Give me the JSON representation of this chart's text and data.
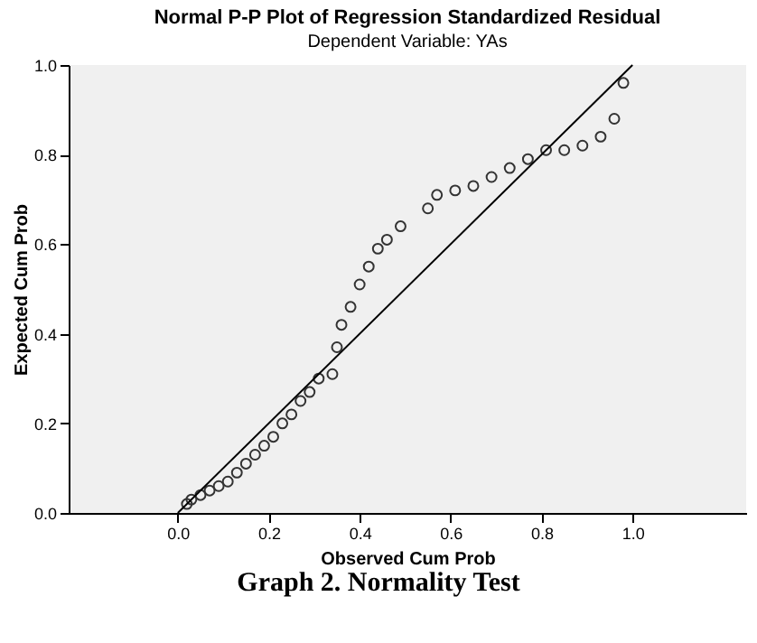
{
  "chart_data": {
    "type": "scatter",
    "title": "Normal P-P Plot of Regression Standardized Residual",
    "subtitle": "Dependent Variable: YAs",
    "xlabel": "Observed Cum Prob",
    "ylabel": "Expected Cum Prob",
    "annotations": [
      "Graph 2. Normality Test"
    ],
    "xlim": [
      -0.24,
      1.25
    ],
    "ylim": [
      0,
      1
    ],
    "xticks": [
      {
        "value": 0,
        "label": "0.0"
      },
      {
        "value": 0.2,
        "label": "0.2"
      },
      {
        "value": 0.4,
        "label": "0.4"
      },
      {
        "value": 0.6,
        "label": "0.6"
      },
      {
        "value": 0.8,
        "label": "0.8"
      },
      {
        "value": 1,
        "label": "1.0"
      }
    ],
    "yticks": [
      {
        "value": 0,
        "label": "0.0"
      },
      {
        "value": 0.2,
        "label": "0.2"
      },
      {
        "value": 0.4,
        "label": "0.4"
      },
      {
        "value": 0.6,
        "label": "0.6"
      },
      {
        "value": 0.8,
        "label": "0.8"
      },
      {
        "value": 1,
        "label": "1.0"
      }
    ],
    "grid": false,
    "series": [
      {
        "marker": "circle",
        "color": "#333333",
        "x": [
          0.02,
          0.03,
          0.05,
          0.07,
          0.09,
          0.11,
          0.13,
          0.15,
          0.17,
          0.19,
          0.21,
          0.23,
          0.25,
          0.27,
          0.29,
          0.31,
          0.34,
          0.35,
          0.36,
          0.38,
          0.4,
          0.42,
          0.44,
          0.46,
          0.49,
          0.55,
          0.57,
          0.61,
          0.65,
          0.69,
          0.73,
          0.77,
          0.81,
          0.85,
          0.89,
          0.93,
          0.96,
          0.98
        ],
        "values": [
          0.02,
          0.03,
          0.04,
          0.05,
          0.06,
          0.07,
          0.09,
          0.11,
          0.13,
          0.15,
          0.17,
          0.2,
          0.22,
          0.25,
          0.27,
          0.3,
          0.31,
          0.37,
          0.42,
          0.46,
          0.51,
          0.55,
          0.59,
          0.61,
          0.64,
          0.68,
          0.71,
          0.72,
          0.73,
          0.75,
          0.77,
          0.79,
          0.81,
          0.81,
          0.82,
          0.84,
          0.88,
          0.96
        ]
      },
      {
        "type": "line",
        "color": "#000000",
        "x": [
          0,
          1
        ],
        "values": [
          0,
          1
        ]
      }
    ]
  }
}
